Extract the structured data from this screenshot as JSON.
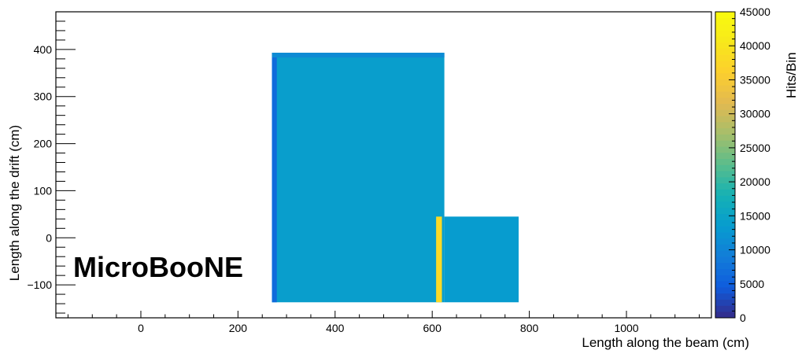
{
  "chart_data": {
    "type": "heatmap",
    "xlabel": "Length along the beam (cm)",
    "ylabel": "Length along the drift (cm)",
    "zlabel": "Hits/Bin",
    "watermark": "MicroBooNE",
    "xlim": [
      -175,
      1175
    ],
    "ylim": [
      -170,
      480
    ],
    "zlim": [
      0,
      45000
    ],
    "xticks": [
      0,
      200,
      400,
      600,
      800,
      1000
    ],
    "yticks": [
      -100,
      0,
      100,
      200,
      300,
      400
    ],
    "zticks": [
      0,
      5000,
      10000,
      15000,
      20000,
      25000,
      30000,
      35000,
      40000,
      45000
    ],
    "regions": [
      {
        "name": "main-block",
        "x": [
          270,
          625
        ],
        "y": [
          -137,
          393
        ],
        "z": 14000
      },
      {
        "name": "lower-right-block",
        "x": [
          625,
          778
        ],
        "y": [
          -137,
          45
        ],
        "z": 13500
      },
      {
        "name": "left-edge-strip",
        "x": [
          270,
          280
        ],
        "y": [
          -137,
          393
        ],
        "z": 6500
      },
      {
        "name": "top-edge-strip",
        "x": [
          270,
          625
        ],
        "y": [
          383,
          393
        ],
        "z": 11000
      },
      {
        "name": "hot-column",
        "x": [
          608,
          620
        ],
        "y": [
          -137,
          45
        ],
        "z": 38000
      }
    ],
    "grid": false,
    "colorbar_position": "right"
  }
}
